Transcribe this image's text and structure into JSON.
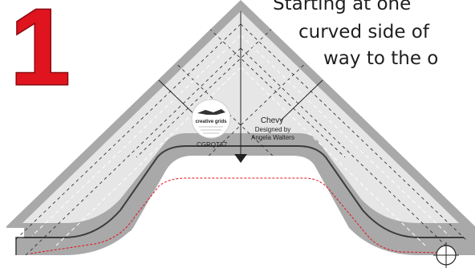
{
  "step": {
    "number": "1",
    "color": "#e0141e"
  },
  "instructions": [
    "Starting at one",
    "curved side of",
    "way to the o"
  ],
  "ruler": {
    "name": "Chevy",
    "credit_line_1": "Designed by",
    "credit_line_2": "Angela Walters",
    "sku": "CGRQTA7",
    "logo_text": "creative grids",
    "body_color": "#e6e6e6",
    "border_color": "#a9a9a9"
  },
  "guide": {
    "line_color": "#e0141e"
  }
}
